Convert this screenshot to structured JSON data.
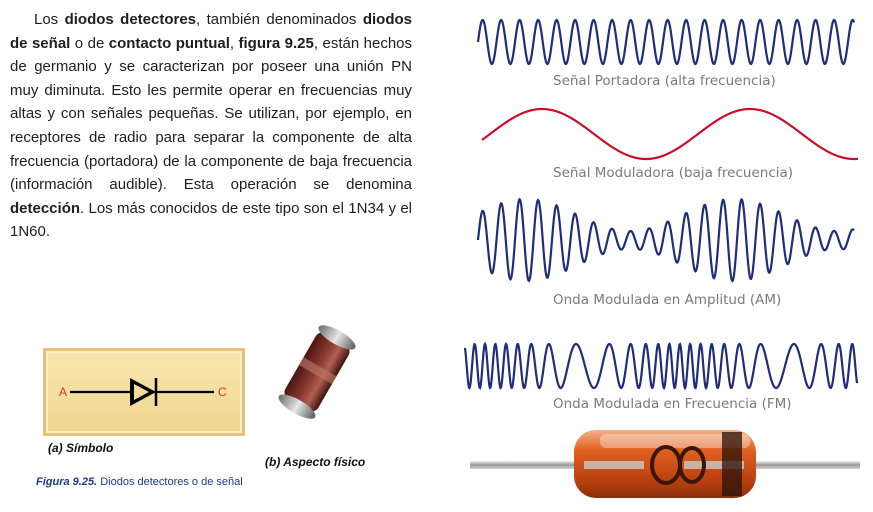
{
  "paragraph": {
    "s1": "Los ",
    "b1": "diodos detectores",
    "s2": ", también denominados ",
    "b2": "diodos de señal",
    "s3": " o de ",
    "b3": "contacto puntual",
    "s4": ", ",
    "b4": "figura 9.25",
    "s5": ", están hechos de germanio y se caracterizan por poseer una unión PN muy diminuta. Esto les permite operar en frecuencias muy altas y con señales pequeñas. Se utilizan, por ejemplo, en receptores de radio para separar la componente de alta frecuencia (portadora) de la componente de baja frecuencia (información audible). Esta operación se denomina ",
    "b5": "detección",
    "s6": ". Los más conocidos de este tipo son el 1N34 y el 1N60."
  },
  "symbol": {
    "anode": "A",
    "cathode": "C",
    "caption": "(a) Símbolo",
    "line_color": "#000000",
    "lead_color": "#e0302c",
    "box_color": "#f3dc9a"
  },
  "physical": {
    "caption": "(b) Aspecto físico",
    "body_color": "#7a2a22"
  },
  "figure_caption": {
    "number": "Figura 9.25.",
    "text": " Diodos detectores o de señal"
  },
  "waves": [
    {
      "caption": "Señal Portadora (alta frecuencia)",
      "color": "#1f2d7a"
    },
    {
      "caption": "Señal Moduladora (baja frecuencia)",
      "color": "#c8102e"
    },
    {
      "caption": "Onda Modulada en Amplitud (AM)",
      "color": "#1f2d7a"
    },
    {
      "caption": "Onda Modulada en Frecuencia (FM)",
      "color": "#1f2d7a"
    }
  ],
  "glass_diode": {
    "body_color": "#d9541e",
    "lead_color": "#b8b8b8"
  }
}
